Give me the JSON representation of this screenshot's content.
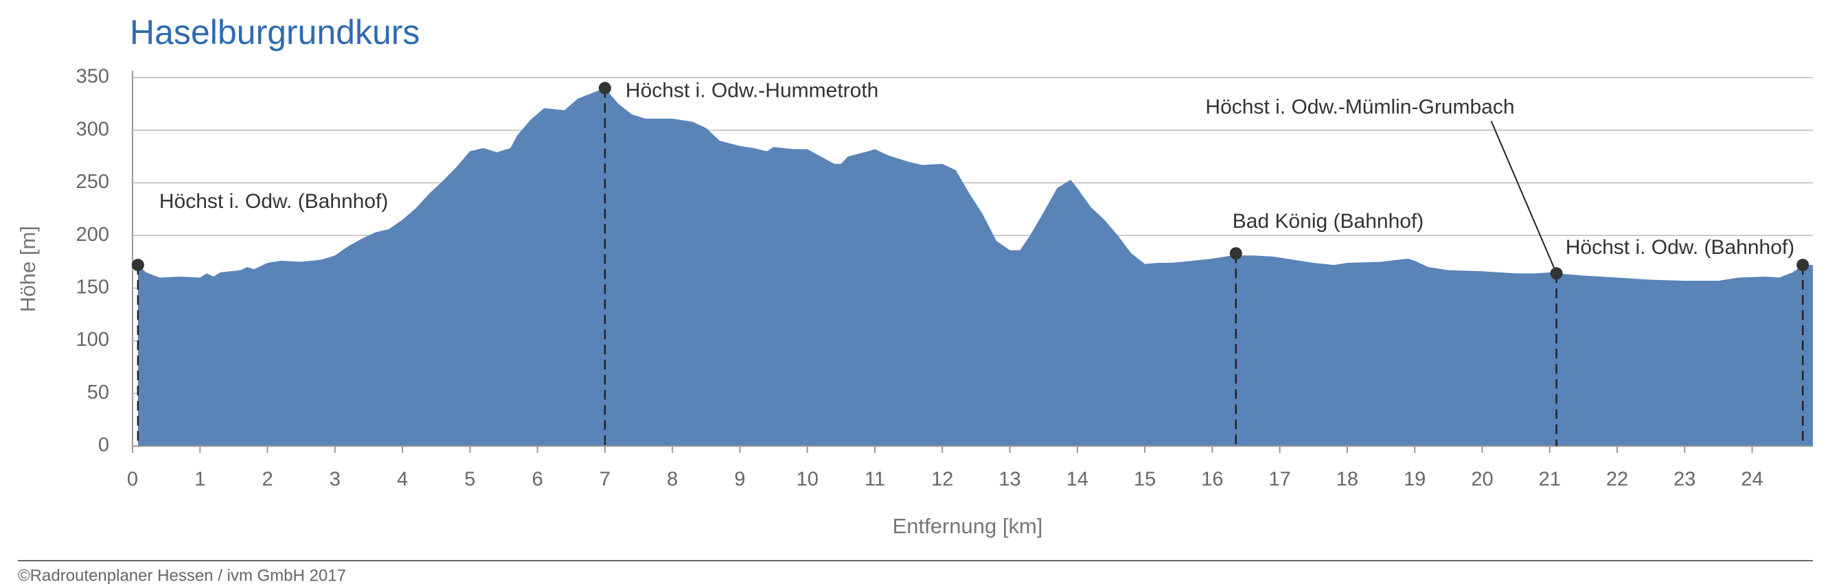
{
  "chart_data": {
    "type": "area",
    "title": "Haselburgrundkurs",
    "x_label": "Entfernung [km]",
    "y_label": "Höhe [m]",
    "xlim": [
      0,
      24.9
    ],
    "ylim": [
      0,
      350
    ],
    "xticks": [
      0,
      1,
      2,
      3,
      4,
      5,
      6,
      7,
      8,
      9,
      10,
      11,
      12,
      13,
      14,
      15,
      16,
      17,
      18,
      19,
      20,
      21,
      22,
      23,
      24
    ],
    "yticks": [
      0,
      50,
      100,
      150,
      200,
      250,
      300,
      350
    ],
    "grid": true,
    "x": [
      0.08,
      0.2,
      0.4,
      0.7,
      1.0,
      1.1,
      1.2,
      1.3,
      1.6,
      1.7,
      1.8,
      2.0,
      2.2,
      2.5,
      2.8,
      3.0,
      3.2,
      3.4,
      3.6,
      3.8,
      4.0,
      4.2,
      4.4,
      4.6,
      4.8,
      5.0,
      5.2,
      5.4,
      5.6,
      5.7,
      5.9,
      6.1,
      6.4,
      6.6,
      6.8,
      7.0,
      7.2,
      7.4,
      7.6,
      8.0,
      8.3,
      8.5,
      8.7,
      9.0,
      9.2,
      9.4,
      9.5,
      9.8,
      10.0,
      10.2,
      10.4,
      10.5,
      10.6,
      10.9,
      11.0,
      11.2,
      11.5,
      11.7,
      12.0,
      12.2,
      12.4,
      12.6,
      12.8,
      13.0,
      13.15,
      13.3,
      13.5,
      13.7,
      13.9,
      14.0,
      14.2,
      14.4,
      14.6,
      14.8,
      15.0,
      15.2,
      15.4,
      15.7,
      16.0,
      16.3,
      16.6,
      16.9,
      17.2,
      17.5,
      17.8,
      18.0,
      18.5,
      18.9,
      19.0,
      19.2,
      19.5,
      20.0,
      20.5,
      20.8,
      21.0,
      21.1,
      21.5,
      22.0,
      22.5,
      23.0,
      23.5,
      23.8,
      24.2,
      24.4,
      24.6,
      24.75,
      24.9
    ],
    "series": [
      {
        "color": "#5a84b8",
        "values": [
          172,
          165,
          160,
          161,
          160,
          164,
          161,
          165,
          167,
          170,
          168,
          174,
          176,
          175,
          177,
          181,
          190,
          197,
          203,
          206,
          215,
          226,
          240,
          252,
          265,
          280,
          283,
          279,
          283,
          295,
          310,
          321,
          319,
          330,
          335,
          340,
          325,
          315,
          311,
          311,
          308,
          302,
          290,
          285,
          283,
          280,
          284,
          282,
          282,
          275,
          268,
          268,
          275,
          280,
          282,
          276,
          270,
          267,
          268,
          262,
          240,
          220,
          195,
          186,
          186,
          200,
          222,
          245,
          253,
          245,
          227,
          215,
          200,
          183,
          173,
          174,
          174,
          176,
          178,
          181,
          181,
          180,
          177,
          174,
          172,
          174,
          175,
          178,
          176,
          170,
          167,
          166,
          164,
          164,
          165,
          164,
          162,
          160,
          158,
          157,
          157,
          160,
          161,
          160,
          165,
          172,
          172
        ]
      }
    ],
    "marker_color": "#333333",
    "markers": [
      {
        "x": 0.08,
        "y": 172,
        "label": "Höchst i. Odw. (Bahnhof)"
      },
      {
        "x": 7.0,
        "y": 340,
        "label": "Höchst i. Odw.-Hummetroth"
      },
      {
        "x": 16.35,
        "y": 183,
        "label": "Bad König (Bahnhof)"
      },
      {
        "x": 21.1,
        "y": 164,
        "label": "Höchst i. Odw.-Mümlin-Grumbach"
      },
      {
        "x": 24.75,
        "y": 172,
        "label": "Höchst i. Odw. (Bahnhof)"
      }
    ]
  },
  "footer": "©Radroutenplaner Hessen / ivm GmbH 2017"
}
